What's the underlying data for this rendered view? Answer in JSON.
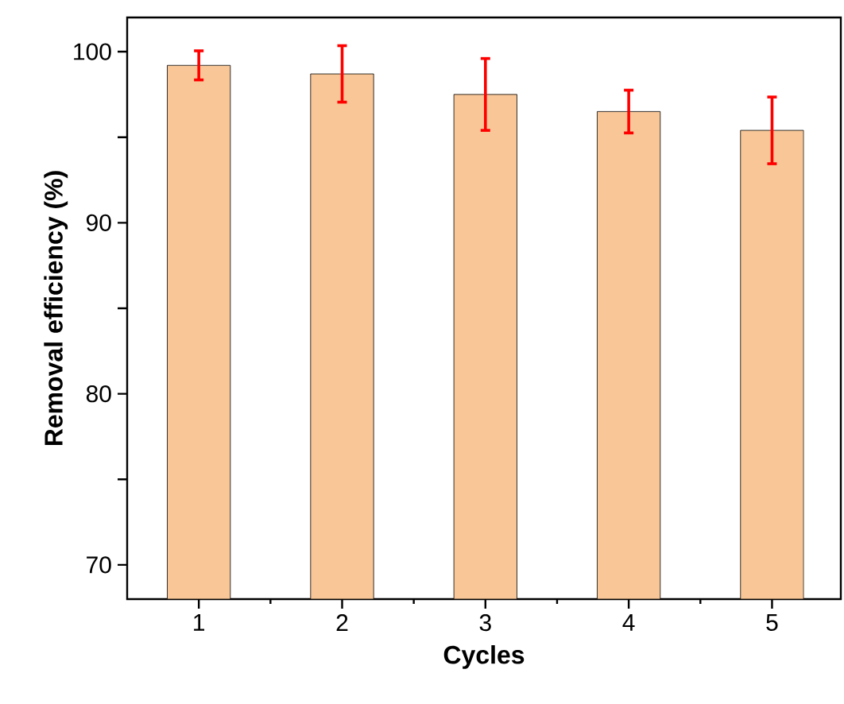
{
  "chart_data": {
    "type": "bar",
    "xlabel": "Cycles",
    "ylabel": "Removal efficiency (%)",
    "categories": [
      "1",
      "2",
      "3",
      "4",
      "5"
    ],
    "values": [
      99.2,
      98.7,
      97.5,
      96.5,
      95.4
    ],
    "errors": [
      0.85,
      1.65,
      2.1,
      1.25,
      1.95
    ],
    "color": "#f9c797",
    "ylim": [
      68,
      102
    ],
    "yticks": [
      70,
      {
        "value": 75,
        "label": null
      },
      80,
      {
        "value": 85,
        "label": null
      },
      90,
      {
        "value": 95,
        "label": null
      },
      100
    ]
  }
}
